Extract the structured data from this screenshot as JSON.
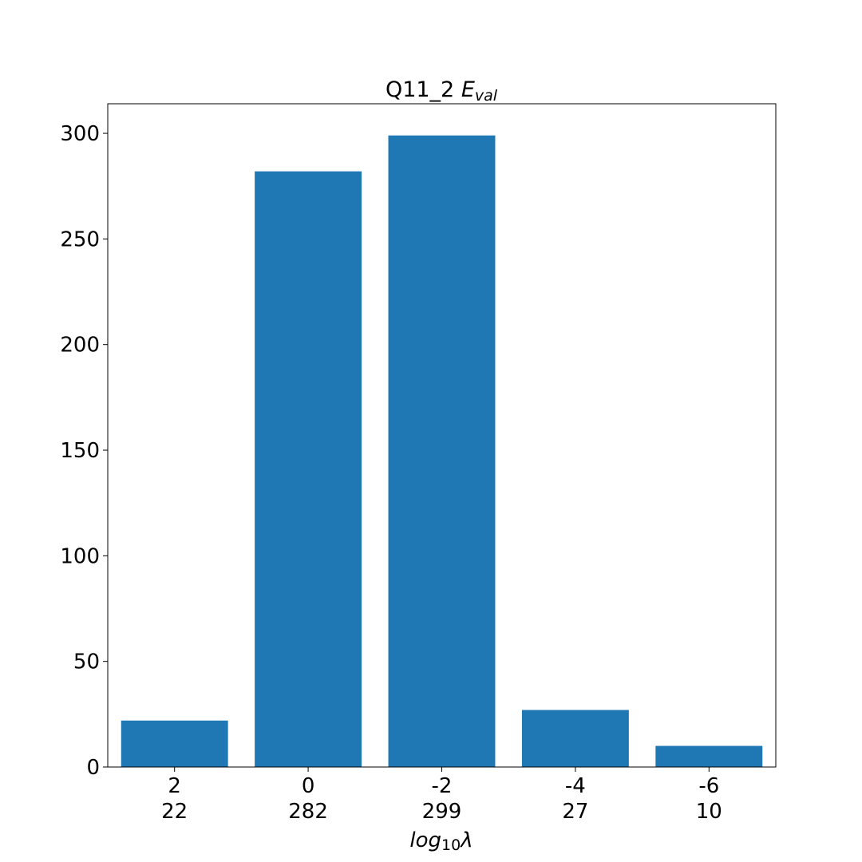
{
  "chart_data": {
    "type": "bar",
    "title": {
      "main": "Q11_2 ",
      "symbol": "E",
      "subscript": "val"
    },
    "xlabel": {
      "main": "log",
      "subscript": "10",
      "symbol": "λ"
    },
    "ylabel": "",
    "categories": [
      "2",
      "0",
      "-2",
      "-4",
      "-6"
    ],
    "values": [
      22,
      282,
      299,
      27,
      10
    ],
    "value_labels": [
      "22",
      "282",
      "299",
      "27",
      "10"
    ],
    "ylim": [
      0,
      314
    ],
    "yticks": [
      0,
      50,
      100,
      150,
      200,
      250,
      300
    ],
    "bar_color": "#1f77b4",
    "grid": false,
    "legend": "none"
  }
}
